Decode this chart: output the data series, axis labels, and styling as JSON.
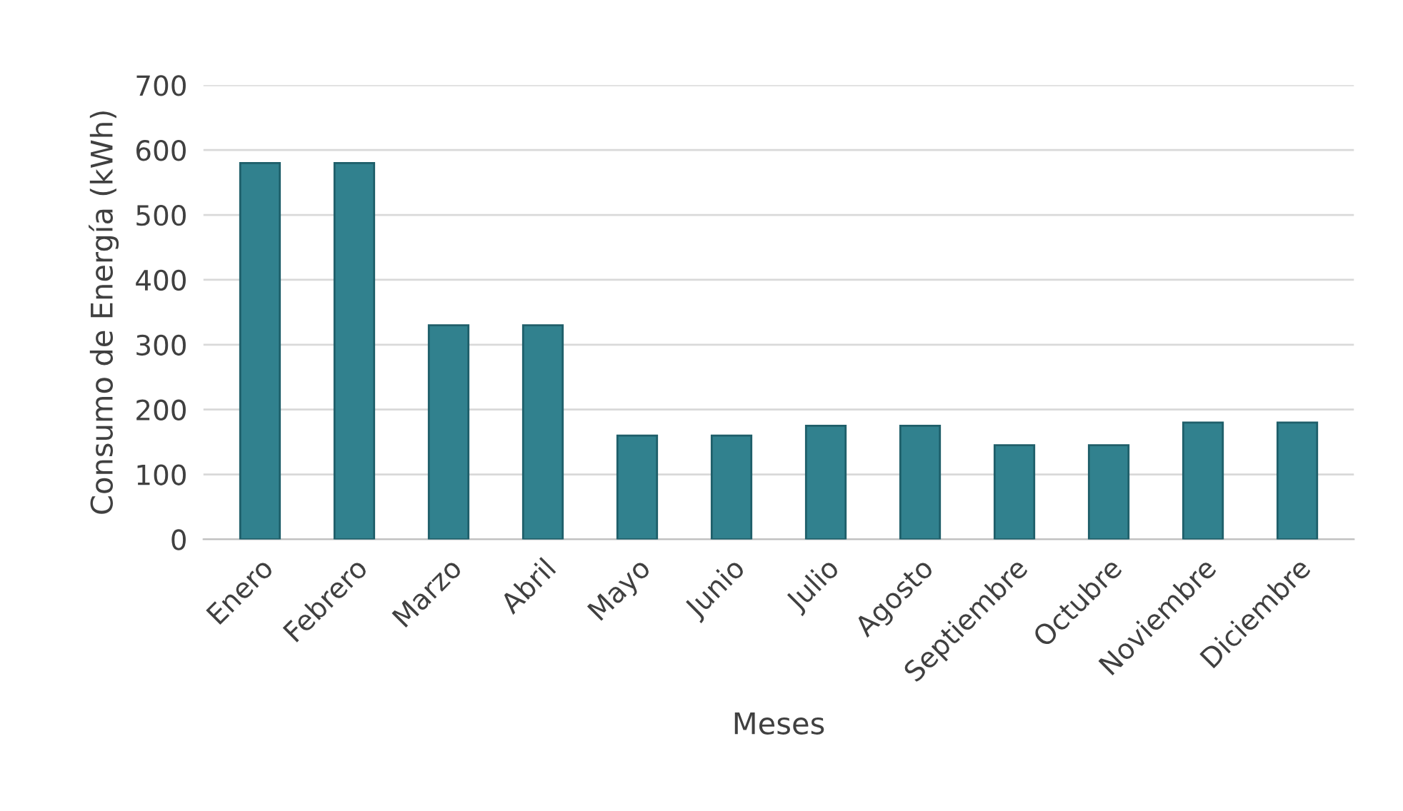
{
  "chart_data": {
    "type": "bar",
    "xlabel": "Meses",
    "ylabel": "Consumo de Energía (kWh)",
    "categories": [
      "Enero",
      "Febrero",
      "Marzo",
      "Abril",
      "Mayo",
      "Junio",
      "Julio",
      "Agosto",
      "Septiembre",
      "Octubre",
      "Noviembre",
      "Diciembre"
    ],
    "values": [
      580,
      580,
      330,
      330,
      160,
      160,
      175,
      175,
      145,
      145,
      180,
      180
    ],
    "color": "#31818e",
    "ylim": [
      0,
      700
    ],
    "yticks": [
      0,
      100,
      200,
      300,
      400,
      500,
      600,
      700
    ],
    "grid": "y"
  }
}
